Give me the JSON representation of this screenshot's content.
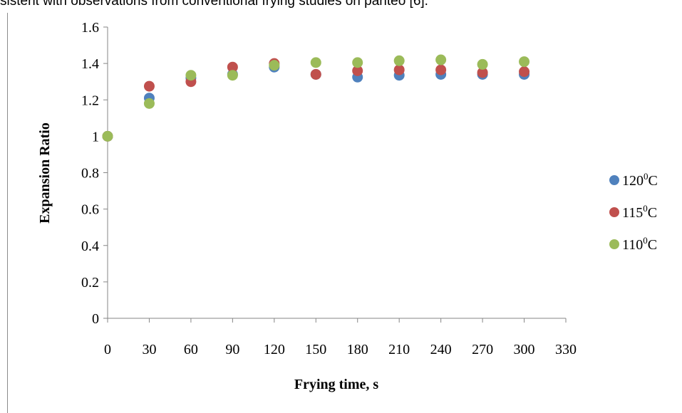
{
  "document": {
    "header_text": "sistent with observations from conventional frying studies on panteo [6]."
  },
  "chart_data": {
    "type": "scatter",
    "title": "",
    "xlabel": "Frying time, s",
    "ylabel": "Expansion Ratio",
    "xlim": [
      0,
      330
    ],
    "ylim": [
      0,
      1.6
    ],
    "x_ticks": [
      0,
      30,
      60,
      90,
      120,
      150,
      180,
      210,
      240,
      270,
      300,
      330
    ],
    "y_ticks": [
      0,
      0.2,
      0.4,
      0.6,
      0.8,
      1,
      1.2,
      1.4,
      1.6
    ],
    "grid": false,
    "legend_position": "right",
    "series": [
      {
        "name_base": "120",
        "name_sup": "0",
        "name_unit": "C",
        "color": "#4f81bd",
        "x": [
          0,
          30,
          60,
          90,
          120,
          150,
          180,
          210,
          240,
          270,
          300
        ],
        "y": [
          1.0,
          1.21,
          1.32,
          1.34,
          1.38,
          1.34,
          1.325,
          1.335,
          1.34,
          1.34,
          1.34
        ]
      },
      {
        "name_base": "115",
        "name_sup": "0",
        "name_unit": "C",
        "color": "#c0504d",
        "x": [
          0,
          30,
          60,
          90,
          120,
          150,
          180,
          210,
          240,
          270,
          300
        ],
        "y": [
          1.0,
          1.275,
          1.3,
          1.38,
          1.4,
          1.34,
          1.36,
          1.365,
          1.365,
          1.35,
          1.355
        ]
      },
      {
        "name_base": "110",
        "name_sup": "0",
        "name_unit": "C",
        "color": "#9bbb59",
        "x": [
          0,
          30,
          60,
          90,
          120,
          150,
          180,
          210,
          240,
          270,
          300
        ],
        "y": [
          1.0,
          1.18,
          1.335,
          1.335,
          1.39,
          1.405,
          1.405,
          1.415,
          1.42,
          1.395,
          1.41
        ]
      }
    ]
  }
}
